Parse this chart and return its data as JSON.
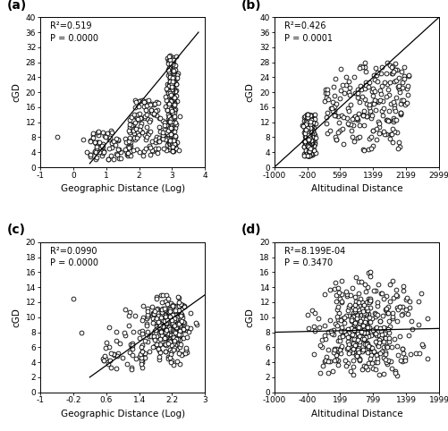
{
  "panels": [
    {
      "label": "(a)",
      "r2": "R²=0.519",
      "p": "P = 0.0000",
      "xlabel": "Geographic Distance (Log)",
      "ylabel": "cGD",
      "xlim": [
        -1,
        4
      ],
      "ylim": [
        0,
        40
      ],
      "xticks": [
        -1,
        0,
        1,
        2,
        3,
        4
      ],
      "yticks": [
        0,
        4,
        8,
        12,
        16,
        20,
        24,
        28,
        32,
        36,
        40
      ],
      "line_x": [
        0.5,
        3.8
      ],
      "line_y": [
        1,
        36
      ],
      "scatter_seed": 42
    },
    {
      "label": "(b)",
      "r2": "R²=0.426",
      "p": "P = 0.0001",
      "xlabel": "Altitudinal Distance",
      "ylabel": "cGD",
      "xlim": [
        -1000,
        2999
      ],
      "ylim": [
        0,
        40
      ],
      "xticks": [
        -1000,
        -200,
        599,
        1399,
        2199,
        2999
      ],
      "yticks": [
        0,
        4,
        8,
        12,
        16,
        20,
        24,
        28,
        32,
        36,
        40
      ],
      "line_x": [
        -1000,
        2999
      ],
      "line_y": [
        0,
        40
      ],
      "scatter_seed": 43
    },
    {
      "label": "(c)",
      "r2": "R²=0.0990",
      "p": "P = 0.0000",
      "xlabel": "Geographic Distance (Log)",
      "ylabel": "cGD",
      "xlim": [
        -1.0,
        3.0
      ],
      "ylim": [
        0,
        20
      ],
      "xticks": [
        -1.0,
        -0.2,
        0.6,
        1.4,
        2.2,
        3.0
      ],
      "yticks": [
        0,
        2,
        4,
        6,
        8,
        10,
        12,
        14,
        16,
        18,
        20
      ],
      "line_x": [
        0.2,
        3.0
      ],
      "line_y": [
        2,
        13
      ],
      "scatter_seed": 44
    },
    {
      "label": "(d)",
      "r2": "R²=8.199E-04",
      "p": "P = 0.3470",
      "xlabel": "Altitudinal Distance",
      "ylabel": "cGD",
      "xlim": [
        -1000,
        1999
      ],
      "ylim": [
        0,
        20
      ],
      "xticks": [
        -1000,
        -400,
        199,
        799,
        1399,
        1999
      ],
      "yticks": [
        0,
        2,
        4,
        6,
        8,
        10,
        12,
        14,
        16,
        18,
        20
      ],
      "line_x": [
        -1000,
        1999
      ],
      "line_y": [
        8.0,
        8.5
      ],
      "scatter_seed": 45
    }
  ],
  "marker_size": 12,
  "marker_color": "white",
  "marker_edge_color": "black",
  "marker_edge_width": 0.6,
  "line_color": "black",
  "line_width": 0.9,
  "font_size": 7.5,
  "label_font_size": 10,
  "annotation_font_size": 7,
  "tick_font_size": 6.5
}
